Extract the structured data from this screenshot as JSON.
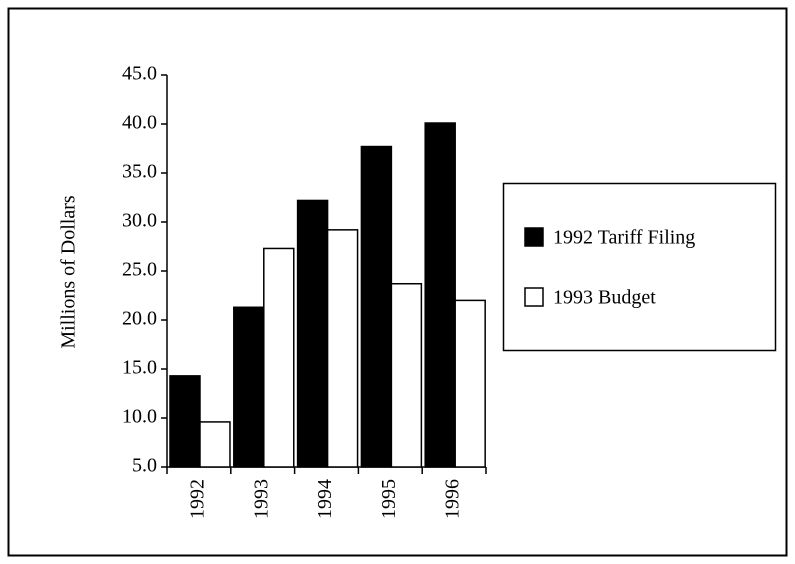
{
  "chart_data": {
    "type": "bar",
    "y_label": "Millions of Dollars",
    "categories": [
      "1992",
      "1993",
      "1994",
      "1995",
      "1996"
    ],
    "series": [
      {
        "name": "1992 Tariff Filing",
        "color": "#000000",
        "values": [
          14.3,
          21.3,
          32.2,
          37.7,
          40.1
        ]
      },
      {
        "name": "1993 Budget",
        "color": "#ffffff",
        "values": [
          9.6,
          27.3,
          29.2,
          23.7,
          22.0
        ]
      }
    ],
    "ylim": [
      5,
      45
    ],
    "yticks": [
      {
        "value": 5,
        "label": "5.0"
      },
      {
        "value": 10,
        "label": "10.0"
      },
      {
        "value": 15,
        "label": "15.0"
      },
      {
        "value": 20,
        "label": "20.0"
      },
      {
        "value": 25,
        "label": "25.0"
      },
      {
        "value": 30,
        "label": "30.0"
      },
      {
        "value": 35,
        "label": "35.0"
      },
      {
        "value": 40,
        "label": "40.0"
      },
      {
        "value": 45,
        "label": "45.0"
      }
    ],
    "grid": false,
    "legend": "right"
  }
}
